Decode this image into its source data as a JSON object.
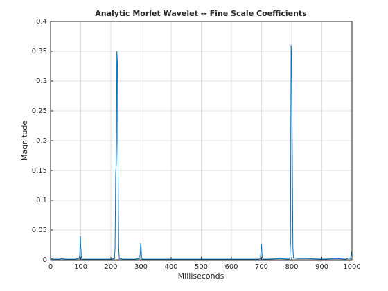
{
  "chart_data": {
    "type": "line",
    "title": "Analytic Morlet Wavelet -- Fine Scale Coefficients",
    "xlabel": "Milliseconds",
    "ylabel": "Magnitude",
    "x": [
      0,
      2,
      4,
      10,
      30,
      35,
      50,
      80,
      95,
      97,
      98,
      99,
      100,
      101,
      102,
      104,
      110,
      150,
      200,
      212,
      214,
      216,
      218,
      219,
      220,
      221,
      222,
      223,
      224,
      226,
      228,
      240,
      280,
      296,
      298,
      299,
      300,
      301,
      302,
      304,
      320,
      400,
      500,
      600,
      690,
      696,
      698,
      699,
      700,
      701,
      702,
      704,
      720,
      760,
      790,
      794,
      796,
      797,
      798,
      799,
      800,
      801,
      802,
      803,
      804,
      806,
      820,
      850,
      900,
      950,
      980,
      990,
      995,
      998,
      1000
    ],
    "series": [
      {
        "color": "#0072bd",
        "values": [
          0.002,
          0.001,
          0.002,
          0.001,
          0.001,
          0.002,
          0.001,
          0.001,
          0.002,
          0.01,
          0.04,
          0.039,
          0.02,
          0.018,
          0.004,
          0.001,
          0.001,
          0.001,
          0.001,
          0.002,
          0.02,
          0.145,
          0.16,
          0.2,
          0.35,
          0.34,
          0.33,
          0.2,
          0.16,
          0.02,
          0.002,
          0.001,
          0.001,
          0.002,
          0.015,
          0.027,
          0.026,
          0.015,
          0.004,
          0.001,
          0.001,
          0.001,
          0.001,
          0.001,
          0.001,
          0.002,
          0.015,
          0.027,
          0.025,
          0.015,
          0.004,
          0.001,
          0.001,
          0.002,
          0.001,
          0.003,
          0.03,
          0.2,
          0.36,
          0.35,
          0.34,
          0.25,
          0.18,
          0.1,
          0.02,
          0.003,
          0.002,
          0.002,
          0.001,
          0.002,
          0.001,
          0.003,
          0.002,
          0.01,
          0.016
        ]
      }
    ],
    "xlim": [
      0,
      1000
    ],
    "xticks": [
      0,
      100,
      200,
      300,
      400,
      500,
      600,
      700,
      800,
      900,
      1000
    ],
    "ylim": [
      0,
      0.4
    ],
    "yticks": [
      0,
      0.05,
      0.1,
      0.15,
      0.2,
      0.25,
      0.3,
      0.35,
      0.4
    ],
    "grid": true
  }
}
